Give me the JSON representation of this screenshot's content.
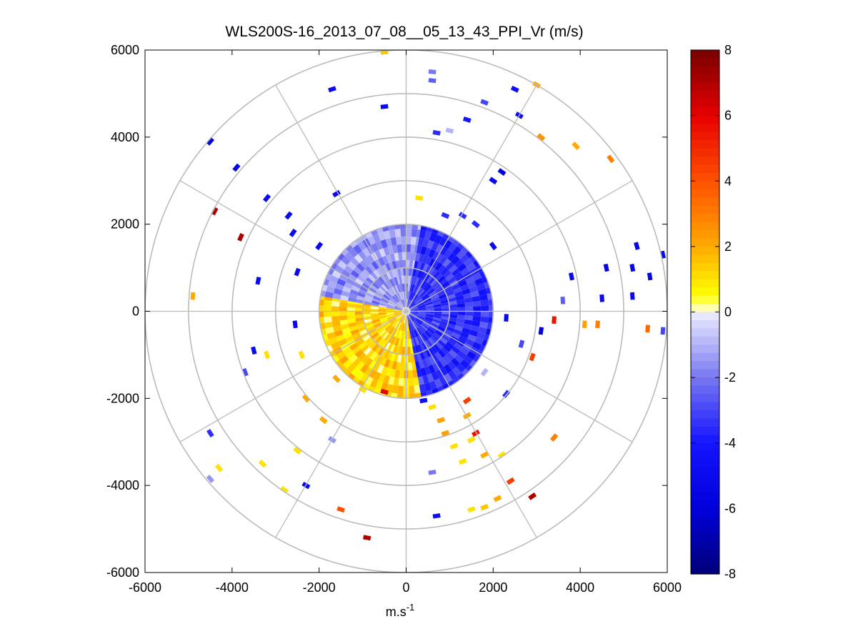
{
  "chart_data": {
    "type": "heatmap",
    "subtype": "polar-ppi",
    "title": "WLS200S-16_2013_07_08__05_13_43_PPI_Vr (m/s)",
    "xlabel_base": "m.s",
    "xlabel_exp": "-1",
    "ylabel": "",
    "xlim": [
      -6000,
      6000
    ],
    "ylim": [
      -6000,
      6000
    ],
    "xticks": [
      "-6000",
      "-4000",
      "-2000",
      "0",
      "2000",
      "4000",
      "6000"
    ],
    "yticks": [
      "6000",
      "4000",
      "2000",
      "0",
      "-2000",
      "-4000",
      "-6000"
    ],
    "polar_grid": {
      "rings_m": [
        1000,
        2000,
        3000,
        4000,
        5000,
        6000
      ],
      "spokes_deg": [
        0,
        30,
        60,
        90,
        120,
        150,
        180,
        210,
        240,
        270,
        300,
        330
      ],
      "color": "#bbbbbb"
    },
    "colorbar": {
      "min": -8,
      "max": 8,
      "ticks": [
        "8",
        "6",
        "4",
        "2",
        "0",
        "-2",
        "-4",
        "-6",
        "-8"
      ]
    },
    "near_field": {
      "max_range_m": 2000,
      "sectors": [
        {
          "az_from_deg": -80,
          "az_to_deg": 10,
          "vr": -1.5,
          "note": "northwest/north sector approaching"
        },
        {
          "az_from_deg": 10,
          "az_to_deg": 170,
          "vr": -3.5,
          "note": "east sector approaching"
        },
        {
          "az_from_deg": 170,
          "az_to_deg": 280,
          "vr": 1.2,
          "note": "south/southwest sector receding"
        }
      ]
    },
    "far_field_echoes": [
      {
        "x": -500,
        "y": 5950,
        "vr": 1.5
      },
      {
        "x": 600,
        "y": 5500,
        "vr": -2.0
      },
      {
        "x": 600,
        "y": 5300,
        "vr": -2.5
      },
      {
        "x": -1700,
        "y": 5100,
        "vr": -5.0
      },
      {
        "x": -500,
        "y": 4700,
        "vr": -5.0
      },
      {
        "x": 1800,
        "y": 4800,
        "vr": -3.0
      },
      {
        "x": 2500,
        "y": 5100,
        "vr": -4.5
      },
      {
        "x": 3000,
        "y": 5200,
        "vr": 2.0
      },
      {
        "x": 2600,
        "y": 4500,
        "vr": -4.5
      },
      {
        "x": 1400,
        "y": 4400,
        "vr": -4.0
      },
      {
        "x": 1000,
        "y": 4150,
        "vr": -1.0
      },
      {
        "x": 700,
        "y": 4100,
        "vr": -3.5
      },
      {
        "x": 3100,
        "y": 4000,
        "vr": 2.5
      },
      {
        "x": 3900,
        "y": 3800,
        "vr": 2.0
      },
      {
        "x": 4700,
        "y": 3500,
        "vr": 3.0
      },
      {
        "x": -4500,
        "y": 3900,
        "vr": -5.5
      },
      {
        "x": -3900,
        "y": 3300,
        "vr": -5.5
      },
      {
        "x": -3200,
        "y": 2600,
        "vr": -5.0
      },
      {
        "x": -4400,
        "y": 2300,
        "vr": 7.0
      },
      {
        "x": -3800,
        "y": 1700,
        "vr": 7.0
      },
      {
        "x": -2700,
        "y": 2200,
        "vr": -5.0
      },
      {
        "x": -2600,
        "y": 1800,
        "vr": -5.0
      },
      {
        "x": -2000,
        "y": 1500,
        "vr": -5.0
      },
      {
        "x": -1600,
        "y": 2700,
        "vr": -5.0
      },
      {
        "x": 300,
        "y": 2600,
        "vr": 1.0
      },
      {
        "x": 900,
        "y": 2200,
        "vr": -3.5
      },
      {
        "x": 1300,
        "y": 2200,
        "vr": -3.5
      },
      {
        "x": 2200,
        "y": 3200,
        "vr": -5.5
      },
      {
        "x": 2000,
        "y": 3000,
        "vr": -5.0
      },
      {
        "x": 1600,
        "y": 2000,
        "vr": -3.5
      },
      {
        "x": 2000,
        "y": 1500,
        "vr": -5.0
      },
      {
        "x": -3400,
        "y": 700,
        "vr": -5.0
      },
      {
        "x": -2500,
        "y": 900,
        "vr": -5.0
      },
      {
        "x": -4900,
        "y": 350,
        "vr": 2.0
      },
      {
        "x": 5300,
        "y": 1500,
        "vr": -5.5
      },
      {
        "x": 5900,
        "y": 1300,
        "vr": -5.0
      },
      {
        "x": 4600,
        "y": 1000,
        "vr": -5.5
      },
      {
        "x": 5200,
        "y": 1000,
        "vr": -5.5
      },
      {
        "x": 5600,
        "y": 800,
        "vr": -5.5
      },
      {
        "x": 3800,
        "y": 800,
        "vr": -5.0
      },
      {
        "x": 4500,
        "y": 300,
        "vr": -5.0
      },
      {
        "x": 5200,
        "y": 350,
        "vr": -5.0
      },
      {
        "x": 3600,
        "y": 250,
        "vr": -2.5
      },
      {
        "x": 3400,
        "y": -200,
        "vr": 5.5
      },
      {
        "x": 3100,
        "y": -450,
        "vr": -6.0
      },
      {
        "x": 4100,
        "y": -300,
        "vr": 2.2
      },
      {
        "x": 4400,
        "y": -300,
        "vr": 3.0
      },
      {
        "x": 5550,
        "y": -400,
        "vr": 3.5
      },
      {
        "x": 5900,
        "y": -450,
        "vr": -3.0
      },
      {
        "x": 2650,
        "y": -750,
        "vr": -3.0
      },
      {
        "x": 2900,
        "y": -1050,
        "vr": 4.5
      },
      {
        "x": 2300,
        "y": -150,
        "vr": -5.0
      },
      {
        "x": -2550,
        "y": -300,
        "vr": -5.0
      },
      {
        "x": -3500,
        "y": -900,
        "vr": -5.0
      },
      {
        "x": -3200,
        "y": -1000,
        "vr": 1.0
      },
      {
        "x": -3700,
        "y": -1400,
        "vr": -3.0
      },
      {
        "x": -2400,
        "y": -1000,
        "vr": 1.0
      },
      {
        "x": -1600,
        "y": -1550,
        "vr": 2.0
      },
      {
        "x": -2300,
        "y": -2000,
        "vr": 2.0
      },
      {
        "x": -1900,
        "y": -2500,
        "vr": 2.0
      },
      {
        "x": -1700,
        "y": -2950,
        "vr": -1.5
      },
      {
        "x": -2500,
        "y": -3200,
        "vr": 1.0
      },
      {
        "x": -3300,
        "y": -3500,
        "vr": 1.0
      },
      {
        "x": -4300,
        "y": -3600,
        "vr": 1.0
      },
      {
        "x": -4500,
        "y": -2800,
        "vr": -3.5
      },
      {
        "x": -4500,
        "y": -3850,
        "vr": -1.5
      },
      {
        "x": -2800,
        "y": -4100,
        "vr": 1.0
      },
      {
        "x": -2300,
        "y": -4000,
        "vr": -5.0
      },
      {
        "x": -1500,
        "y": -4550,
        "vr": 4.0
      },
      {
        "x": -900,
        "y": -5200,
        "vr": 7.0
      },
      {
        "x": 700,
        "y": -4700,
        "vr": -4.5
      },
      {
        "x": 1500,
        "y": -4550,
        "vr": 1.0
      },
      {
        "x": 1800,
        "y": -4500,
        "vr": 1.5
      },
      {
        "x": 2100,
        "y": -4300,
        "vr": 2.0
      },
      {
        "x": 2400,
        "y": -3900,
        "vr": 4.5
      },
      {
        "x": 2900,
        "y": -4250,
        "vr": 7.0
      },
      {
        "x": 600,
        "y": -3700,
        "vr": -2.0
      },
      {
        "x": 1300,
        "y": -3450,
        "vr": 1.0
      },
      {
        "x": 1800,
        "y": -3300,
        "vr": 2.0
      },
      {
        "x": 2200,
        "y": -3300,
        "vr": 1.0
      },
      {
        "x": 1100,
        "y": -3100,
        "vr": 1.0
      },
      {
        "x": 1500,
        "y": -2950,
        "vr": 1.0
      },
      {
        "x": 1600,
        "y": -2800,
        "vr": 5.5
      },
      {
        "x": 3400,
        "y": -2900,
        "vr": 3.0
      },
      {
        "x": 900,
        "y": -2800,
        "vr": 2.2
      },
      {
        "x": 800,
        "y": -2500,
        "vr": 2.2
      },
      {
        "x": 1400,
        "y": -2400,
        "vr": 2.0
      },
      {
        "x": 1400,
        "y": -2050,
        "vr": 4.5
      },
      {
        "x": 2300,
        "y": -1900,
        "vr": -3.5
      },
      {
        "x": 600,
        "y": -2200,
        "vr": 1.0
      },
      {
        "x": 400,
        "y": -2050,
        "vr": -4.5
      },
      {
        "x": 1800,
        "y": -1400,
        "vr": -1.0
      },
      {
        "x": -1000,
        "y": -1800,
        "vr": 1.0
      },
      {
        "x": -500,
        "y": -1850,
        "vr": 6.0
      }
    ]
  }
}
